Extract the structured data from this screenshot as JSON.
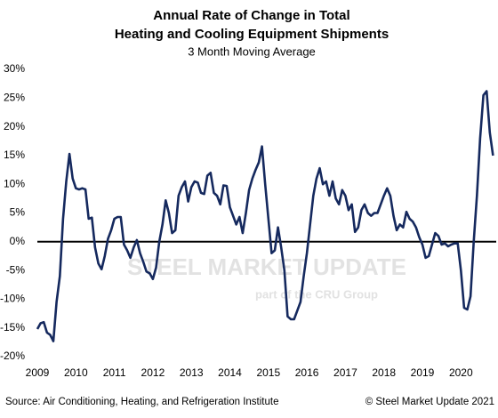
{
  "chart_data": {
    "type": "line",
    "title": [
      "Annual Rate of Change in Total",
      "Heating and Cooling Equipment Shipments"
    ],
    "subtitle": "3 Month Moving Average",
    "source": "Source: Air Conditioning, Heating, and Refrigeration Institute",
    "copyright": "© Steel Market Update 2021",
    "watermark": [
      "STEEL MARKET UPDATE",
      "part of the CRU Group"
    ],
    "categories": [
      "2009",
      null,
      null,
      null,
      null,
      null,
      null,
      null,
      null,
      null,
      null,
      null,
      "2010",
      null,
      null,
      null,
      null,
      null,
      null,
      null,
      null,
      null,
      null,
      null,
      "2011",
      null,
      null,
      null,
      null,
      null,
      null,
      null,
      null,
      null,
      null,
      null,
      "2012",
      null,
      null,
      null,
      null,
      null,
      null,
      null,
      null,
      null,
      null,
      null,
      "2013",
      null,
      null,
      null,
      null,
      null,
      null,
      null,
      null,
      null,
      null,
      null,
      "2014",
      null,
      null,
      null,
      null,
      null,
      null,
      null,
      null,
      null,
      null,
      null,
      "2015",
      null,
      null,
      null,
      null,
      null,
      null,
      null,
      null,
      null,
      null,
      null,
      "2016",
      null,
      null,
      null,
      null,
      null,
      null,
      null,
      null,
      null,
      null,
      null,
      "2017",
      null,
      null,
      null,
      null,
      null,
      null,
      null,
      null,
      null,
      null,
      null,
      "2018",
      null,
      null,
      null,
      null,
      null,
      null,
      null,
      null,
      null,
      null,
      null,
      "2019",
      null,
      null,
      null,
      null,
      null,
      null,
      null,
      null,
      null,
      null,
      null,
      "2020",
      null,
      null,
      null,
      null,
      null,
      null,
      null,
      null,
      null,
      null
    ],
    "series": [
      {
        "name": "3 Month Moving Average",
        "color": "#15295e",
        "values": [
          -15.2,
          -14.2,
          -14,
          -15.8,
          -16.2,
          -17.3,
          -10.5,
          -6,
          4,
          10.5,
          15.3,
          11,
          9.3,
          9.1,
          9.3,
          9.1,
          4,
          4.2,
          -1,
          -3.8,
          -4.8,
          -2.5,
          0.5,
          2,
          4,
          4.3,
          4.3,
          -0.5,
          -1.5,
          -2.8,
          -1,
          0.3,
          -2,
          -3.5,
          -5.2,
          -5.5,
          -6.5,
          -4.5,
          0,
          3,
          7.2,
          5,
          1.5,
          2,
          8,
          9.5,
          10.5,
          7,
          9.5,
          10.5,
          10.3,
          8.5,
          8.3,
          11.5,
          12,
          8.5,
          8,
          6.5,
          9.8,
          9.7,
          6,
          4.5,
          3,
          4.3,
          1.5,
          5,
          9,
          11,
          12.5,
          13.8,
          16.6,
          10,
          4,
          -2,
          -1.5,
          2.5,
          -1,
          -5,
          -13,
          -13.5,
          -13.5,
          -12,
          -10.5,
          -6,
          -2,
          3,
          8,
          11,
          12.8,
          10,
          10.5,
          8,
          10.5,
          7.5,
          6.5,
          9,
          8,
          5.5,
          6.5,
          1.7,
          2.5,
          5.5,
          6.5,
          5,
          4.5,
          5,
          5,
          6.5,
          8,
          9.3,
          8,
          4.5,
          2,
          3,
          2.5,
          5.2,
          4,
          3.5,
          2.5,
          0.8,
          -0.5,
          -2.8,
          -2.5,
          -0.5,
          1.5,
          1,
          -0.5,
          -0.3,
          -0.8,
          -0.5,
          -0.3,
          -0.3,
          -5,
          -11.5,
          -11.8,
          -9.5,
          0,
          8,
          18,
          25.5,
          26.2,
          19,
          15
        ]
      }
    ],
    "ylim": [
      -20,
      30
    ],
    "yticks": [
      {
        "value": -20,
        "label": "-20%"
      },
      {
        "value": -15,
        "label": "-15%"
      },
      {
        "value": -10,
        "label": "-10%"
      },
      {
        "value": -5,
        "label": "-5%"
      },
      {
        "value": 0,
        "label": "0%"
      },
      {
        "value": 5,
        "label": "5%"
      },
      {
        "value": 10,
        "label": "10%"
      },
      {
        "value": 15,
        "label": "15%"
      },
      {
        "value": 20,
        "label": "20%"
      },
      {
        "value": 25,
        "label": "25%"
      },
      {
        "value": 30,
        "label": "30%"
      }
    ],
    "grid": false,
    "zero_line": true
  }
}
